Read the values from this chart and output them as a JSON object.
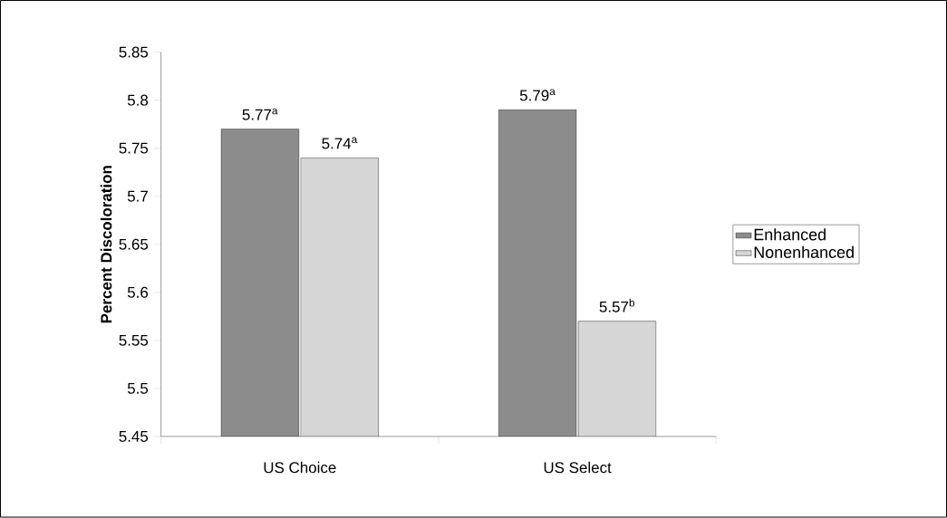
{
  "chart_data": {
    "type": "bar",
    "ylabel": "Percent Discoloration",
    "categories": [
      "US Choice",
      "US Select"
    ],
    "series": [
      {
        "name": "Enhanced",
        "color": "#8c8c8c",
        "values": [
          5.77,
          5.79
        ],
        "value_labels": [
          "5.77$^{a}$",
          "5.79$^{a}$"
        ]
      },
      {
        "name": "Nonenhanced",
        "color": "#d6d6d6",
        "values": [
          5.74,
          5.57
        ],
        "value_labels": [
          "5.74$^{a}$",
          "5.57$^{b}$"
        ]
      }
    ],
    "ylim": [
      5.45,
      5.85
    ],
    "yticks": [
      5.45,
      5.5,
      5.55,
      5.6,
      5.65,
      5.7,
      5.75,
      5.8,
      5.85
    ],
    "grid": false,
    "legend": "right"
  }
}
